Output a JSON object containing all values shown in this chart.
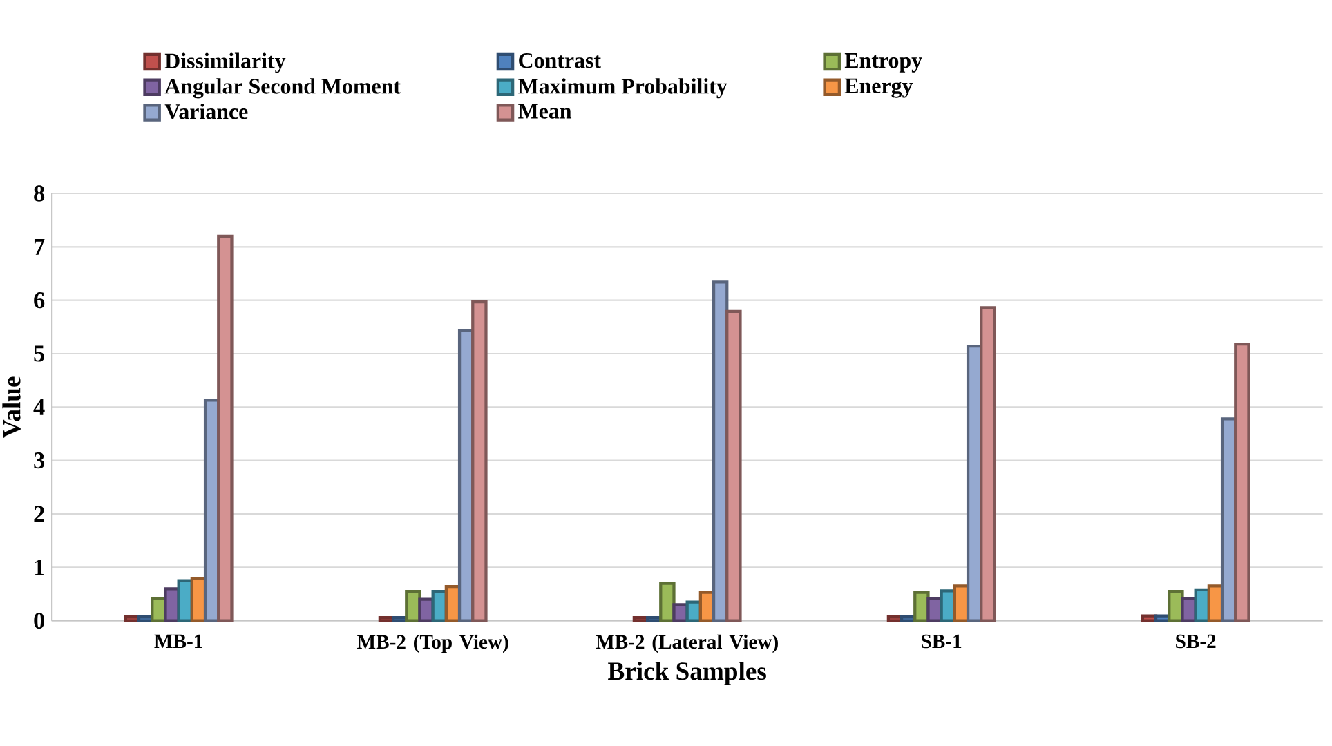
{
  "chart_data": {
    "type": "bar",
    "xlabel": "Brick Samples",
    "ylabel": "Value",
    "categories": [
      "MB-1",
      "MB-2 (Top View)",
      "MB-2 (Lateral View)",
      "SB-1",
      "SB-2"
    ],
    "series": [
      {
        "name": "Dissimilarity",
        "color": "#c0504d",
        "values": [
          0.07,
          0.06,
          0.06,
          0.07,
          0.09
        ]
      },
      {
        "name": "Contrast",
        "color": "#4f81bd",
        "values": [
          0.07,
          0.06,
          0.06,
          0.07,
          0.09
        ]
      },
      {
        "name": "Entropy",
        "color": "#9bbb59",
        "values": [
          0.42,
          0.55,
          0.7,
          0.53,
          0.55
        ]
      },
      {
        "name": "Angular Second Moment",
        "color": "#8064a2",
        "values": [
          0.6,
          0.4,
          0.3,
          0.42,
          0.42
        ]
      },
      {
        "name": "Maximum Probability",
        "color": "#4bacc6",
        "values": [
          0.75,
          0.55,
          0.35,
          0.56,
          0.58
        ]
      },
      {
        "name": "Energy",
        "color": "#f79646",
        "values": [
          0.79,
          0.64,
          0.53,
          0.65,
          0.65
        ]
      },
      {
        "name": "Variance",
        "color": "#95a9d0",
        "values": [
          4.13,
          5.43,
          6.34,
          5.14,
          3.78
        ]
      },
      {
        "name": "Mean",
        "color": "#d49292",
        "values": [
          7.2,
          5.97,
          5.79,
          5.86,
          5.18
        ]
      }
    ],
    "ylim": [
      0,
      8
    ],
    "yticks": [
      0,
      1,
      2,
      3,
      4,
      5,
      6,
      7,
      8
    ],
    "grid": "y",
    "legend": "top"
  }
}
